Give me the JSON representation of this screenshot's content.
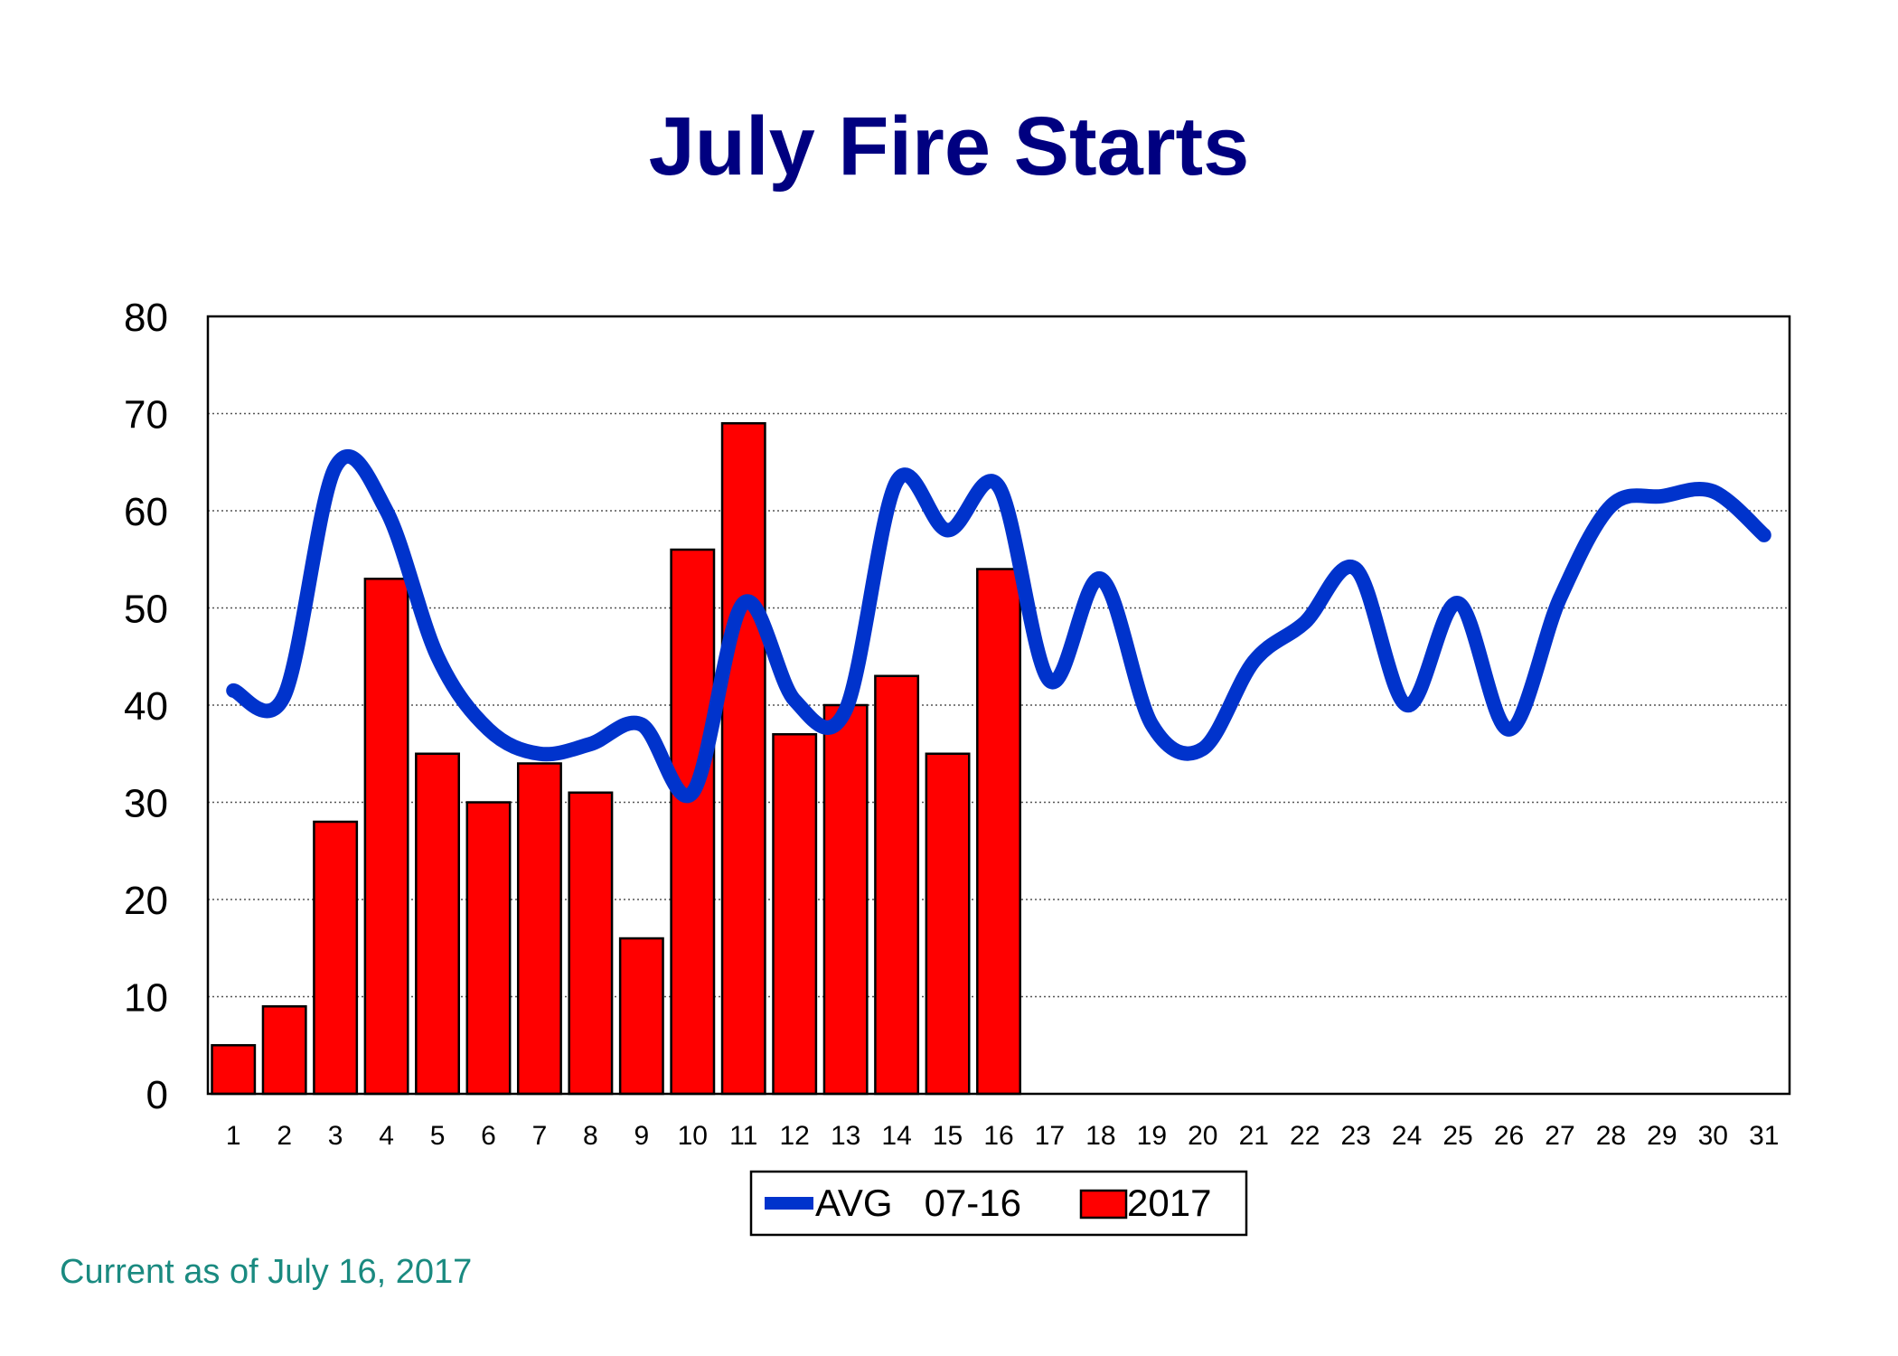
{
  "chart_data": {
    "type": "bar",
    "title": "July Fire Starts",
    "categories": [
      "1",
      "2",
      "3",
      "4",
      "5",
      "6",
      "7",
      "8",
      "9",
      "10",
      "11",
      "12",
      "13",
      "14",
      "15",
      "16",
      "17",
      "18",
      "19",
      "20",
      "21",
      "22",
      "23",
      "24",
      "25",
      "26",
      "27",
      "28",
      "29",
      "30",
      "31"
    ],
    "ylim": [
      0,
      80
    ],
    "yticks": [
      0,
      10,
      20,
      30,
      40,
      50,
      60,
      70,
      80
    ],
    "grid": "horizontal dotted",
    "legend_position": "bottom-center",
    "series": [
      {
        "name": "2017",
        "kind": "bar",
        "color": "#ff0000",
        "values": [
          5,
          9,
          28,
          53,
          35,
          30,
          34,
          31,
          16,
          56,
          69,
          37,
          40,
          43,
          35,
          54,
          null,
          null,
          null,
          null,
          null,
          null,
          null,
          null,
          null,
          null,
          null,
          null,
          null,
          null,
          null
        ]
      },
      {
        "name": "AVG   07-16",
        "kind": "line",
        "color": "#0033cc",
        "values": [
          41.5,
          41,
          64.5,
          60,
          45,
          37.5,
          35,
          36,
          38,
          31,
          50.5,
          40.5,
          39.5,
          63,
          58,
          62.5,
          42.5,
          53,
          38,
          35.5,
          44.5,
          48.5,
          54,
          40,
          50.5,
          37.5,
          51,
          60.5,
          61.5,
          62,
          57.5
        ]
      }
    ]
  },
  "footnote": "Current as of July 16, 2017"
}
